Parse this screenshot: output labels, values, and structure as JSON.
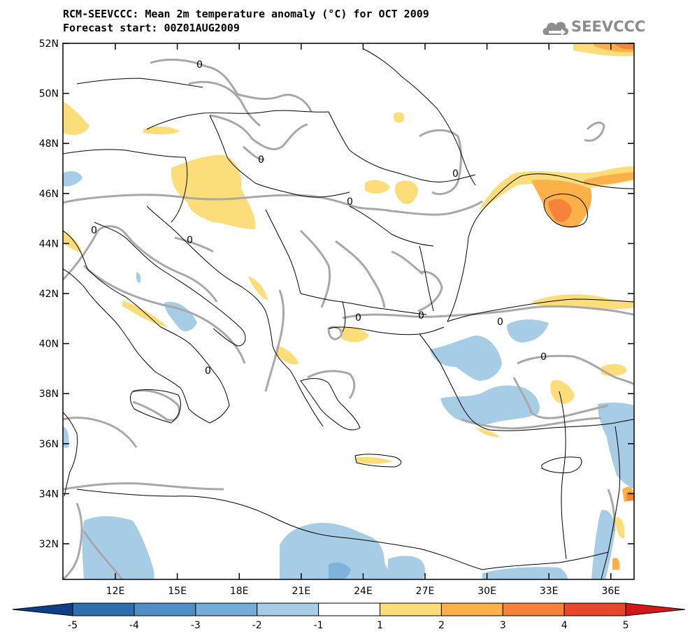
{
  "title": {
    "line1": "RCM-SEEVCCC: Mean 2m temperature anomaly (°C) for OCT 2009",
    "line2": "Forecast start: 00Z01AUG2009"
  },
  "logo": {
    "text": "SEEVCCC",
    "icon": "cloud-arrow-icon"
  },
  "map": {
    "lat_labels": [
      "52N",
      "50N",
      "48N",
      "46N",
      "44N",
      "42N",
      "40N",
      "38N",
      "36N",
      "34N",
      "32N"
    ],
    "lon_labels": [
      "12E",
      "15E",
      "18E",
      "21E",
      "24E",
      "27E",
      "30E",
      "33E",
      "36E"
    ],
    "contour_label": "0"
  },
  "colorbar": {
    "ticks": [
      "-5",
      "-4",
      "-3",
      "-2",
      "-1",
      "1",
      "2",
      "3",
      "4",
      "5"
    ],
    "colors": [
      "#0f3f86",
      "#2f6faf",
      "#4f8fc6",
      "#74acd8",
      "#a7cde6",
      "#ffffff",
      "#fddc7a",
      "#fbb048",
      "#f7823a",
      "#e9452a",
      "#d21818"
    ]
  },
  "colors": {
    "warm_light": "#fddc7a",
    "warm_mid": "#fbb048",
    "warm_strong": "#f7823a",
    "cool_light": "#a7cde6",
    "cool_mid": "#7fb3da",
    "contour": "#a8a8a8"
  }
}
